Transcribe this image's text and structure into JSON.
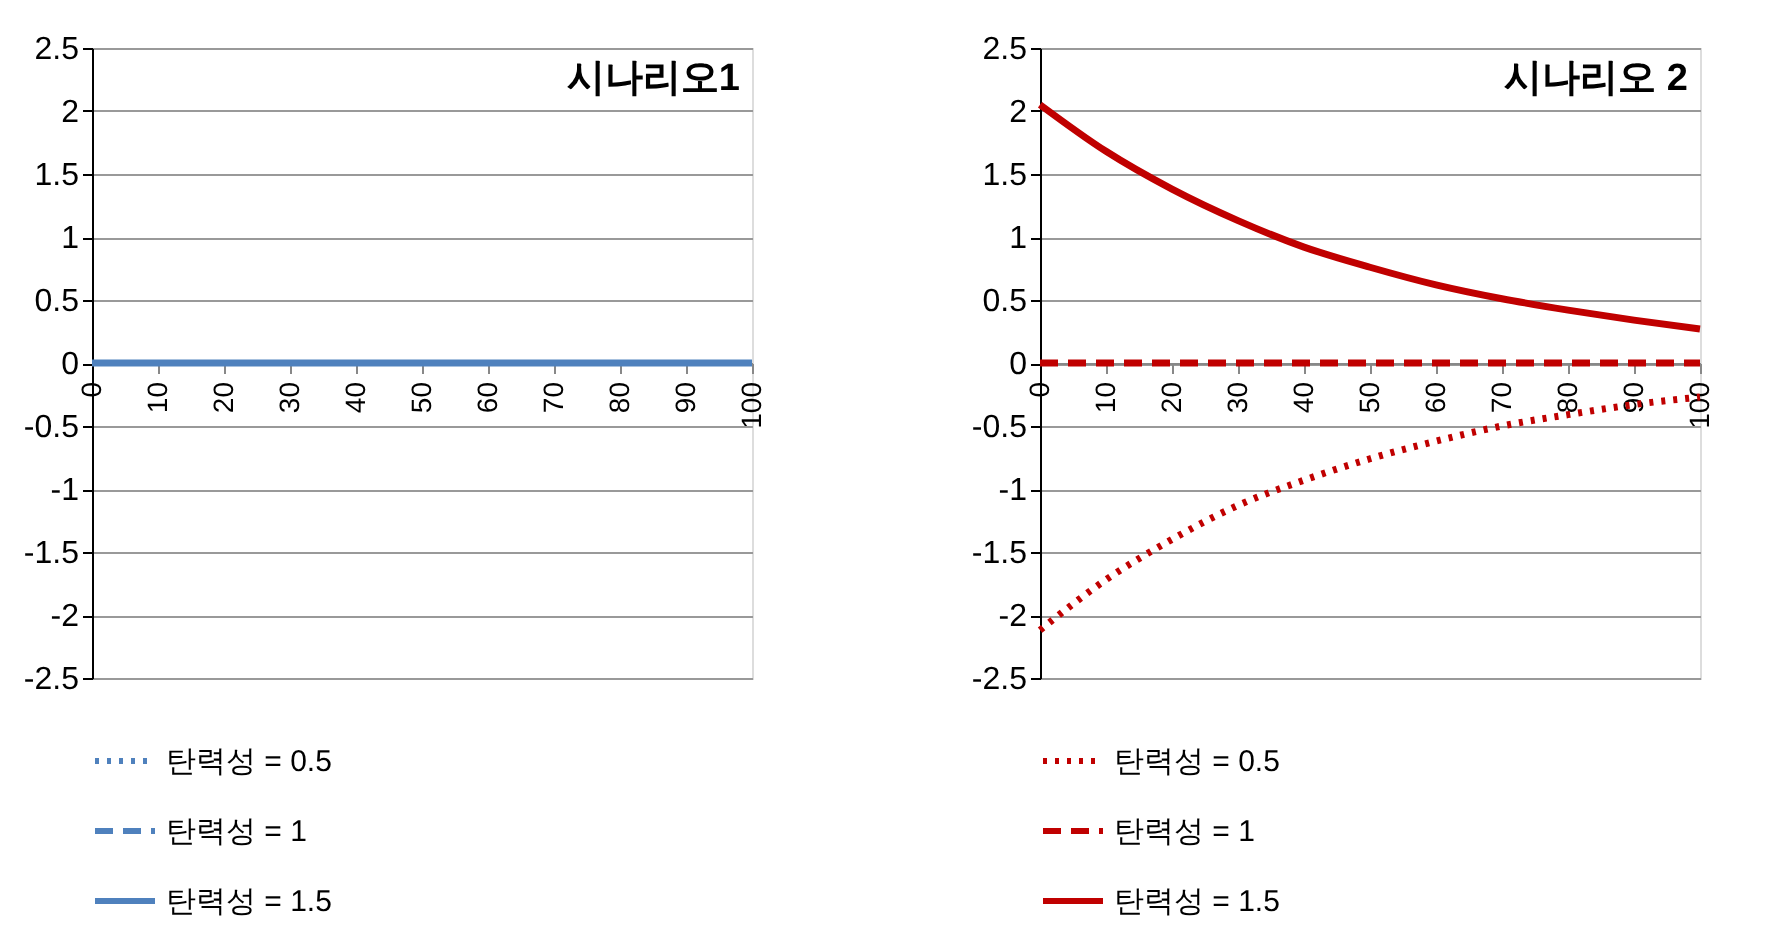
{
  "chart_data": [
    {
      "type": "line",
      "title": "시나리오1",
      "x": [
        0,
        10,
        20,
        30,
        40,
        50,
        60,
        70,
        80,
        90,
        100
      ],
      "xlim": [
        0,
        100
      ],
      "xticks": [
        0,
        10,
        20,
        30,
        40,
        50,
        60,
        70,
        80,
        90,
        100
      ],
      "ylim": [
        -2.5,
        2.5
      ],
      "yticks": [
        -2.5,
        -2,
        -1.5,
        -1,
        -0.5,
        0,
        0.5,
        1,
        1.5,
        2,
        2.5
      ],
      "grid": "y",
      "legend": "bottom",
      "series": [
        {
          "name": "탄력성 = 0.5",
          "color": "#4f81bd",
          "line_style": "dotted",
          "values": [
            null,
            null,
            null,
            null,
            null,
            null,
            null,
            null,
            null,
            null,
            null
          ]
        },
        {
          "name": "탄력성 = 1",
          "color": "#4f81bd",
          "line_style": "dashed",
          "values": [
            null,
            null,
            null,
            null,
            null,
            null,
            null,
            null,
            null,
            null,
            null
          ]
        },
        {
          "name": "탄력성 = 1.5",
          "color": "#4f81bd",
          "line_style": "solid",
          "values": [
            0,
            0,
            0,
            0,
            0,
            0,
            0,
            0,
            0,
            0,
            0
          ]
        }
      ]
    },
    {
      "type": "line",
      "title": "시나리오 2",
      "x": [
        0,
        10,
        20,
        30,
        40,
        50,
        60,
        70,
        80,
        90,
        100
      ],
      "xlim": [
        0,
        100
      ],
      "xticks": [
        0,
        10,
        20,
        30,
        40,
        50,
        60,
        70,
        80,
        90,
        100
      ],
      "ylim": [
        -2.5,
        2.5
      ],
      "yticks": [
        -2.5,
        -2,
        -1.5,
        -1,
        -0.5,
        0,
        0.5,
        1,
        1.5,
        2,
        2.5
      ],
      "grid": "y",
      "legend": "bottom",
      "series": [
        {
          "name": "탄력성 = 0.5",
          "color": "#c00000",
          "line_style": "dotted",
          "values": [
            -2.12,
            -1.72,
            -1.4,
            -1.13,
            -0.93,
            -0.76,
            -0.62,
            -0.5,
            -0.41,
            -0.33,
            -0.27
          ]
        },
        {
          "name": "탄력성 = 1",
          "color": "#c00000",
          "line_style": "dashed",
          "values": [
            0,
            0,
            0,
            0,
            0,
            0,
            0,
            0,
            0,
            0,
            0
          ]
        },
        {
          "name": "탄력성 = 1.5",
          "color": "#c00000",
          "line_style": "solid",
          "values": [
            2.05,
            1.68,
            1.38,
            1.13,
            0.92,
            0.76,
            0.62,
            0.51,
            0.42,
            0.34,
            0.27
          ]
        }
      ]
    }
  ]
}
